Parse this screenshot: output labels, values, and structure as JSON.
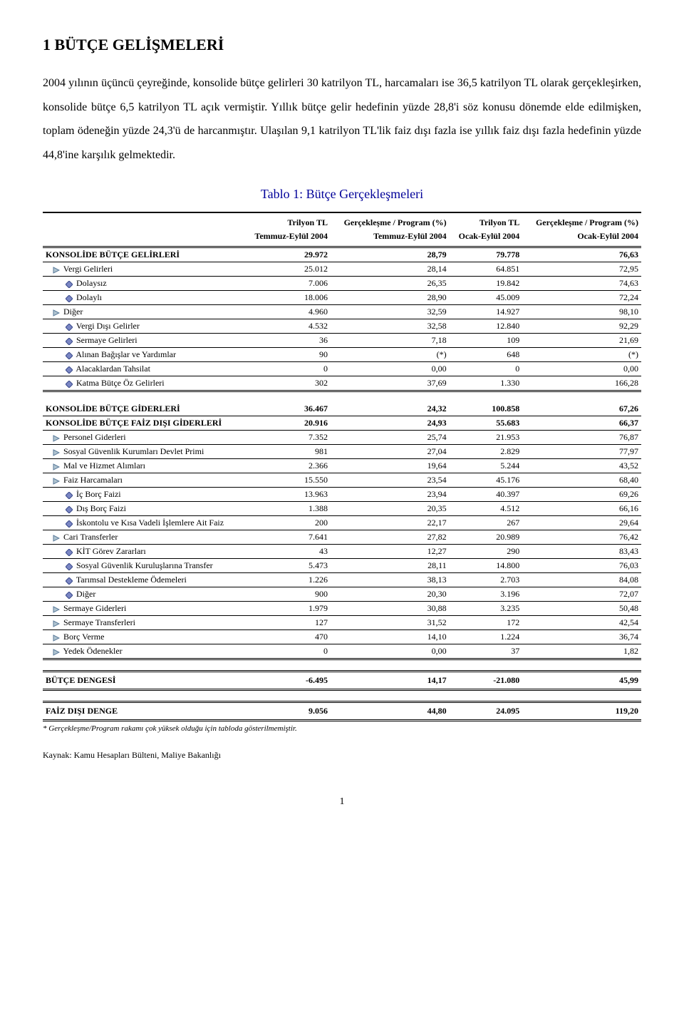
{
  "heading": "1   BÜTÇE GELİŞMELERİ",
  "paragraph": "2004 yılının üçüncü çeyreğinde, konsolide bütçe gelirleri 30 katrilyon TL, harcamaları ise 36,5 katrilyon TL olarak gerçekleşirken, konsolide bütçe 6,5 katrilyon TL açık vermiştir. Yıllık bütçe gelir hedefinin yüzde 28,8'i söz konusu dönemde elde edilmişken, toplam ödeneğin yüzde 24,3'ü de harcanmıştır. Ulaşılan 9,1 katrilyon TL'lik faiz dışı fazla ise yıllık faiz dışı fazla hedefinin yüzde 44,8'ine karşılık gelmektedir.",
  "table_title": "Tablo 1: Bütçe Gerçekleşmeleri",
  "col_headers_top": [
    "",
    "Trilyon TL",
    "Gerçekleşme / Program (%)",
    "Trilyon TL",
    "Gerçekleşme / Program (%)"
  ],
  "col_headers_sub": [
    "",
    "Temmuz-Eylül 2004",
    "Temmuz-Eylül 2004",
    "Ocak-Eylül 2004",
    "Ocak-Eylül 2004"
  ],
  "icon_colors": {
    "tri_stroke": "#5a7a9a",
    "tri_fill": "#b0c4d0",
    "dia_stroke": "#3a4a8a",
    "dia_fill": "#7a86c4"
  },
  "rows": [
    {
      "type": "section",
      "label": "KONSOLİDE BÜTÇE GELİRLERİ",
      "c1": "29.972",
      "c2": "28,79",
      "c3": "79.778",
      "c4": "76,63"
    },
    {
      "type": "tri",
      "label": "Vergi Gelirleri",
      "indent": 1,
      "c1": "25.012",
      "c2": "28,14",
      "c3": "64.851",
      "c4": "72,95"
    },
    {
      "type": "dia",
      "label": "Dolaysız",
      "indent": 2,
      "c1": "7.006",
      "c2": "26,35",
      "c3": "19.842",
      "c4": "74,63"
    },
    {
      "type": "dia",
      "label": "Dolaylı",
      "indent": 2,
      "c1": "18.006",
      "c2": "28,90",
      "c3": "45.009",
      "c4": "72,24"
    },
    {
      "type": "tri",
      "label": "Diğer",
      "indent": 1,
      "c1": "4.960",
      "c2": "32,59",
      "c3": "14.927",
      "c4": "98,10"
    },
    {
      "type": "dia",
      "label": "Vergi Dışı Gelirler",
      "indent": 2,
      "c1": "4.532",
      "c2": "32,58",
      "c3": "12.840",
      "c4": "92,29"
    },
    {
      "type": "dia",
      "label": "Sermaye Gelirleri",
      "indent": 2,
      "c1": "36",
      "c2": "7,18",
      "c3": "109",
      "c4": "21,69"
    },
    {
      "type": "dia",
      "label": "Alınan Bağışlar ve Yardımlar",
      "indent": 2,
      "c1": "90",
      "c2": "(*)",
      "c3": "648",
      "c4": "(*)"
    },
    {
      "type": "dia",
      "label": "Alacaklardan Tahsilat",
      "indent": 2,
      "c1": "0",
      "c2": "0,00",
      "c3": "0",
      "c4": "0,00"
    },
    {
      "type": "dia",
      "label": "Katma Bütçe Öz Gelirleri",
      "indent": 2,
      "c1": "302",
      "c2": "37,69",
      "c3": "1.330",
      "c4": "166,28",
      "section_end": true
    },
    {
      "type": "spacer"
    },
    {
      "type": "section",
      "label": "KONSOLİDE BÜTÇE GİDERLERİ",
      "c1": "36.467",
      "c2": "24,32",
      "c3": "100.858",
      "c4": "67,26"
    },
    {
      "type": "section",
      "label": "KONSOLİDE BÜTÇE FAİZ DIŞI GİDERLERİ",
      "c1": "20.916",
      "c2": "24,93",
      "c3": "55.683",
      "c4": "66,37"
    },
    {
      "type": "tri",
      "label": "Personel Giderleri",
      "indent": 1,
      "c1": "7.352",
      "c2": "25,74",
      "c3": "21.953",
      "c4": "76,87"
    },
    {
      "type": "tri",
      "label": "Sosyal Güvenlik Kurumları Devlet Primi",
      "indent": 1,
      "c1": "981",
      "c2": "27,04",
      "c3": "2.829",
      "c4": "77,97"
    },
    {
      "type": "tri",
      "label": "Mal ve Hizmet Alımları",
      "indent": 1,
      "c1": "2.366",
      "c2": "19,64",
      "c3": "5.244",
      "c4": "43,52"
    },
    {
      "type": "tri",
      "label": "Faiz Harcamaları",
      "indent": 1,
      "c1": "15.550",
      "c2": "23,54",
      "c3": "45.176",
      "c4": "68,40"
    },
    {
      "type": "dia",
      "label": "İç Borç Faizi",
      "indent": 2,
      "c1": "13.963",
      "c2": "23,94",
      "c3": "40.397",
      "c4": "69,26"
    },
    {
      "type": "dia",
      "label": "Dış Borç Faizi",
      "indent": 2,
      "c1": "1.388",
      "c2": "20,35",
      "c3": "4.512",
      "c4": "66,16"
    },
    {
      "type": "dia",
      "label": "İskontolu ve Kısa Vadeli İşlemlere Ait Faiz",
      "indent": 2,
      "c1": "200",
      "c2": "22,17",
      "c3": "267",
      "c4": "29,64"
    },
    {
      "type": "tri",
      "label": "Cari Transferler",
      "indent": 1,
      "c1": "7.641",
      "c2": "27,82",
      "c3": "20.989",
      "c4": "76,42"
    },
    {
      "type": "dia",
      "label": "KİT Görev Zararları",
      "indent": 2,
      "c1": "43",
      "c2": "12,27",
      "c3": "290",
      "c4": "83,43"
    },
    {
      "type": "dia",
      "label": "Sosyal Güvenlik Kuruluşlarına Transfer",
      "indent": 2,
      "c1": "5.473",
      "c2": "28,11",
      "c3": "14.800",
      "c4": "76,03"
    },
    {
      "type": "dia",
      "label": "Tarımsal Destekleme Ödemeleri",
      "indent": 2,
      "c1": "1.226",
      "c2": "38,13",
      "c3": "2.703",
      "c4": "84,08"
    },
    {
      "type": "dia",
      "label": "Diğer",
      "indent": 2,
      "c1": "900",
      "c2": "20,30",
      "c3": "3.196",
      "c4": "72,07"
    },
    {
      "type": "tri",
      "label": "Sermaye Giderleri",
      "indent": 1,
      "c1": "1.979",
      "c2": "30,88",
      "c3": "3.235",
      "c4": "50,48"
    },
    {
      "type": "tri",
      "label": "Sermaye Transferleri",
      "indent": 1,
      "c1": "127",
      "c2": "31,52",
      "c3": "172",
      "c4": "42,54"
    },
    {
      "type": "tri",
      "label": "Borç Verme",
      "indent": 1,
      "c1": "470",
      "c2": "14,10",
      "c3": "1.224",
      "c4": "36,74"
    },
    {
      "type": "tri",
      "label": "Yedek Ödenekler",
      "indent": 1,
      "c1": "0",
      "c2": "0,00",
      "c3": "37",
      "c4": "1,82",
      "section_end": true
    },
    {
      "type": "spacer"
    },
    {
      "type": "total",
      "label": "BÜTÇE DENGESİ",
      "c1": "-6.495",
      "c2": "14,17",
      "c3": "-21.080",
      "c4": "45,99"
    },
    {
      "type": "spacer"
    },
    {
      "type": "total",
      "label": "FAİZ DIŞI DENGE",
      "c1": "9.056",
      "c2": "44,80",
      "c3": "24.095",
      "c4": "119,20"
    }
  ],
  "footnote": "* Gerçekleşme/Program rakamı çok yüksek olduğu için tabloda gösterilmemiştir.",
  "source": "Kaynak: Kamu Hesapları Bülteni, Maliye Bakanlığı",
  "page_number": "1"
}
